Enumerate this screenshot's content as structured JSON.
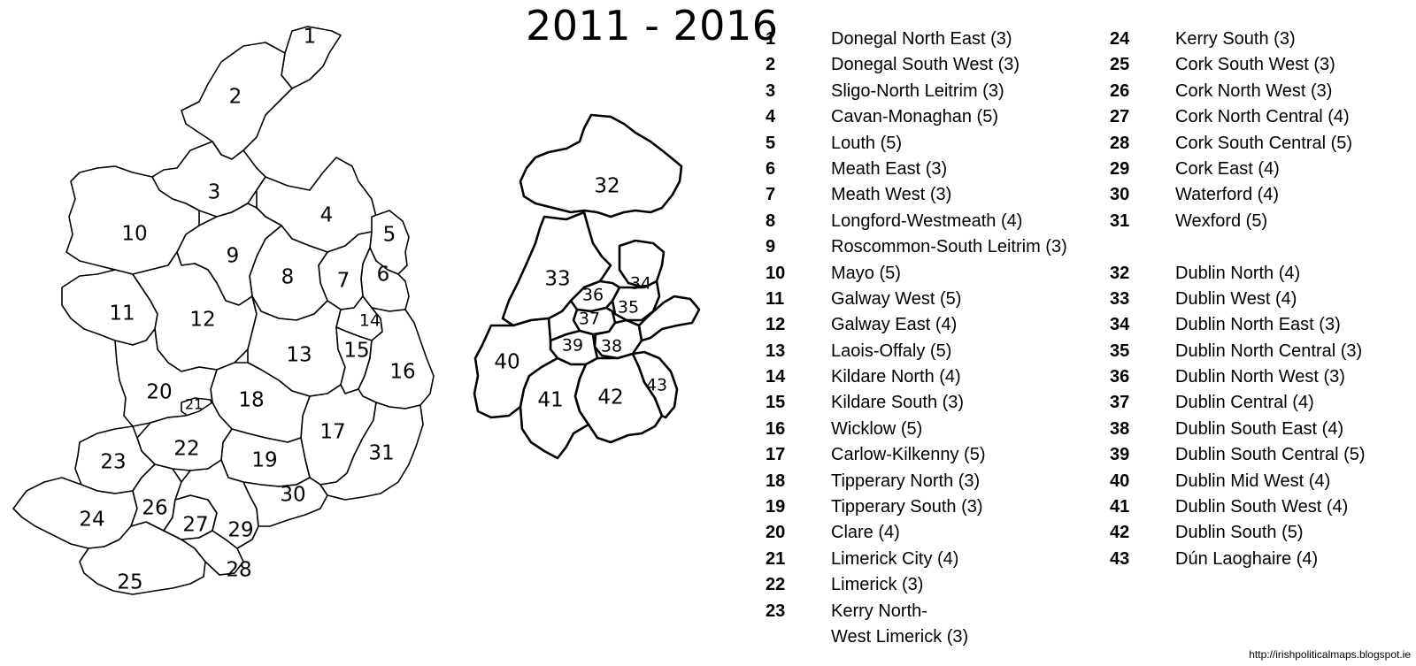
{
  "title": "2011 - 2016",
  "credit": "http://irishpoliticalmaps.blogspot.ie",
  "constituencies": [
    {
      "num": "1",
      "name": "Donegal North East (3)"
    },
    {
      "num": "2",
      "name": "Donegal South West (3)"
    },
    {
      "num": "3",
      "name": "Sligo-North Leitrim (3)"
    },
    {
      "num": "4",
      "name": "Cavan-Monaghan (5)"
    },
    {
      "num": "5",
      "name": "Louth (5)"
    },
    {
      "num": "6",
      "name": "Meath East (3)"
    },
    {
      "num": "7",
      "name": "Meath West (3)"
    },
    {
      "num": "8",
      "name": "Longford-Westmeath (4)"
    },
    {
      "num": "9",
      "name": "Roscommon-South Leitrim (3)"
    },
    {
      "num": "10",
      "name": "Mayo (5)"
    },
    {
      "num": "11",
      "name": "Galway West (5)"
    },
    {
      "num": "12",
      "name": "Galway East (4)"
    },
    {
      "num": "13",
      "name": "Laois-Offaly (5)"
    },
    {
      "num": "14",
      "name": "Kildare North (4)"
    },
    {
      "num": "15",
      "name": "Kildare South (3)"
    },
    {
      "num": "16",
      "name": "Wicklow (5)"
    },
    {
      "num": "17",
      "name": "Carlow-Kilkenny (5)"
    },
    {
      "num": "18",
      "name": "Tipperary North (3)"
    },
    {
      "num": "19",
      "name": "Tipperary South (3)"
    },
    {
      "num": "20",
      "name": "Clare (4)"
    },
    {
      "num": "21",
      "name": "Limerick City (4)"
    },
    {
      "num": "22",
      "name": "Limerick (3)"
    },
    {
      "num": "23",
      "name": "Kerry North-",
      "name2": "West Limerick (3)"
    },
    {
      "num": "24",
      "name": "Kerry South (3)"
    },
    {
      "num": "25",
      "name": "Cork South West (3)"
    },
    {
      "num": "26",
      "name": "Cork North West (3)"
    },
    {
      "num": "27",
      "name": "Cork North Central (4)"
    },
    {
      "num": "28",
      "name": "Cork South Central (5)"
    },
    {
      "num": "29",
      "name": "Cork East (4)"
    },
    {
      "num": "30",
      "name": "Waterford (4)"
    },
    {
      "num": "31",
      "name": "Wexford (5)"
    },
    {
      "num": "32",
      "name": "Dublin North (4)"
    },
    {
      "num": "33",
      "name": "Dublin West (4)"
    },
    {
      "num": "34",
      "name": "Dublin North East (3)"
    },
    {
      "num": "35",
      "name": "Dublin North Central (3)"
    },
    {
      "num": "36",
      "name": "Dublin North West (3)"
    },
    {
      "num": "37",
      "name": "Dublin Central (4)"
    },
    {
      "num": "38",
      "name": "Dublin South East (4)"
    },
    {
      "num": "39",
      "name": "Dublin South Central (5)"
    },
    {
      "num": "40",
      "name": "Dublin Mid West (4)"
    },
    {
      "num": "41",
      "name": "Dublin South West (4)"
    },
    {
      "num": "42",
      "name": "Dublin South (5)"
    },
    {
      "num": "43",
      "name": "Dún Laoghaire (4)"
    }
  ]
}
